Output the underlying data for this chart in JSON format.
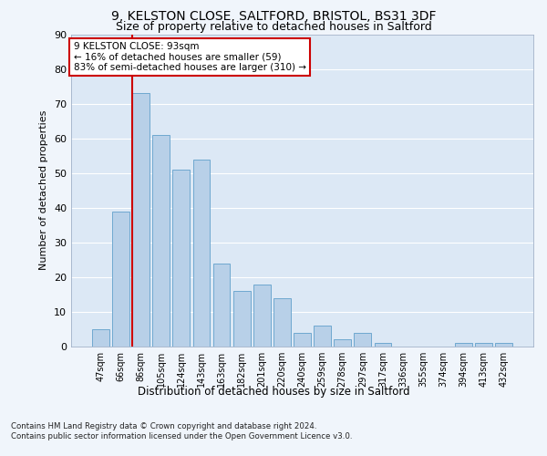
{
  "title_line1": "9, KELSTON CLOSE, SALTFORD, BRISTOL, BS31 3DF",
  "title_line2": "Size of property relative to detached houses in Saltford",
  "xlabel": "Distribution of detached houses by size in Saltford",
  "ylabel": "Number of detached properties",
  "categories": [
    "47sqm",
    "66sqm",
    "86sqm",
    "105sqm",
    "124sqm",
    "143sqm",
    "163sqm",
    "182sqm",
    "201sqm",
    "220sqm",
    "240sqm",
    "259sqm",
    "278sqm",
    "297sqm",
    "317sqm",
    "336sqm",
    "355sqm",
    "374sqm",
    "394sqm",
    "413sqm",
    "432sqm"
  ],
  "values": [
    5,
    39,
    73,
    61,
    51,
    54,
    24,
    16,
    18,
    14,
    4,
    6,
    2,
    4,
    1,
    0,
    0,
    0,
    1,
    1,
    1
  ],
  "bar_color": "#b8d0e8",
  "bar_edge_color": "#6fa8d0",
  "vline_bar_index": 2,
  "vline_color": "#cc0000",
  "annotation_text": "9 KELSTON CLOSE: 93sqm\n← 16% of detached houses are smaller (59)\n83% of semi-detached houses are larger (310) →",
  "annotation_box_color": "#ffffff",
  "annotation_box_edge": "#cc0000",
  "ylim": [
    0,
    90
  ],
  "yticks": [
    0,
    10,
    20,
    30,
    40,
    50,
    60,
    70,
    80,
    90
  ],
  "fig_background": "#f0f5fb",
  "plot_background": "#dce8f5",
  "footer_line1": "Contains HM Land Registry data © Crown copyright and database right 2024.",
  "footer_line2": "Contains public sector information licensed under the Open Government Licence v3.0.",
  "grid_color": "#ffffff"
}
